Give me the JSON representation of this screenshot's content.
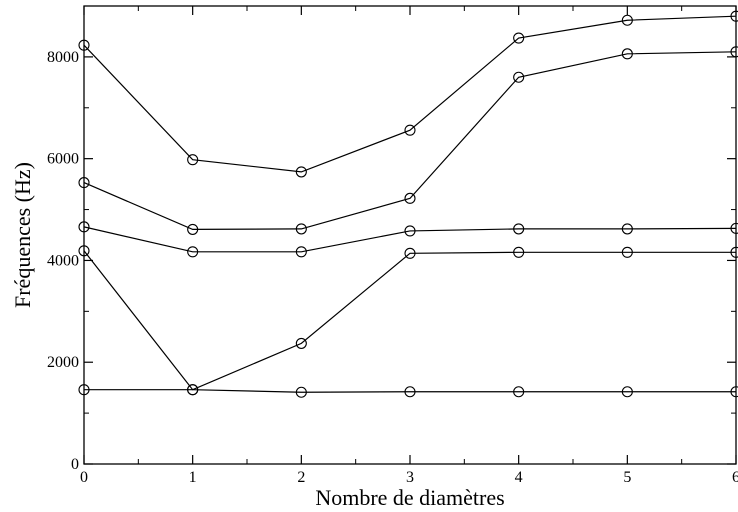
{
  "chart_data": {
    "type": "line",
    "title": "",
    "xlabel": "Nombre de diamètres",
    "ylabel": "Fréquences (Hz)",
    "xlim": [
      0,
      6
    ],
    "ylim": [
      0,
      9000
    ],
    "x": [
      0,
      1,
      2,
      3,
      4,
      5,
      6
    ],
    "xticks": [
      0,
      1,
      2,
      3,
      4,
      5,
      6
    ],
    "yticks": [
      0,
      2000,
      4000,
      6000,
      8000
    ],
    "marker": "open-circle",
    "line_color": "#000000",
    "grid": false,
    "legend": "none",
    "series": [
      {
        "values": [
          1460,
          1460,
          1410,
          1420,
          1420,
          1420,
          1420
        ]
      },
      {
        "values": [
          4190,
          1460,
          2370,
          4140,
          4160,
          4160,
          4160
        ]
      },
      {
        "values": [
          4660,
          4170,
          4170,
          4580,
          4620,
          4620,
          4630
        ]
      },
      {
        "values": [
          5530,
          4610,
          4620,
          5220,
          7600,
          8060,
          8100
        ]
      },
      {
        "values": [
          8230,
          5980,
          5740,
          6560,
          8370,
          8720,
          8800
        ]
      }
    ]
  }
}
